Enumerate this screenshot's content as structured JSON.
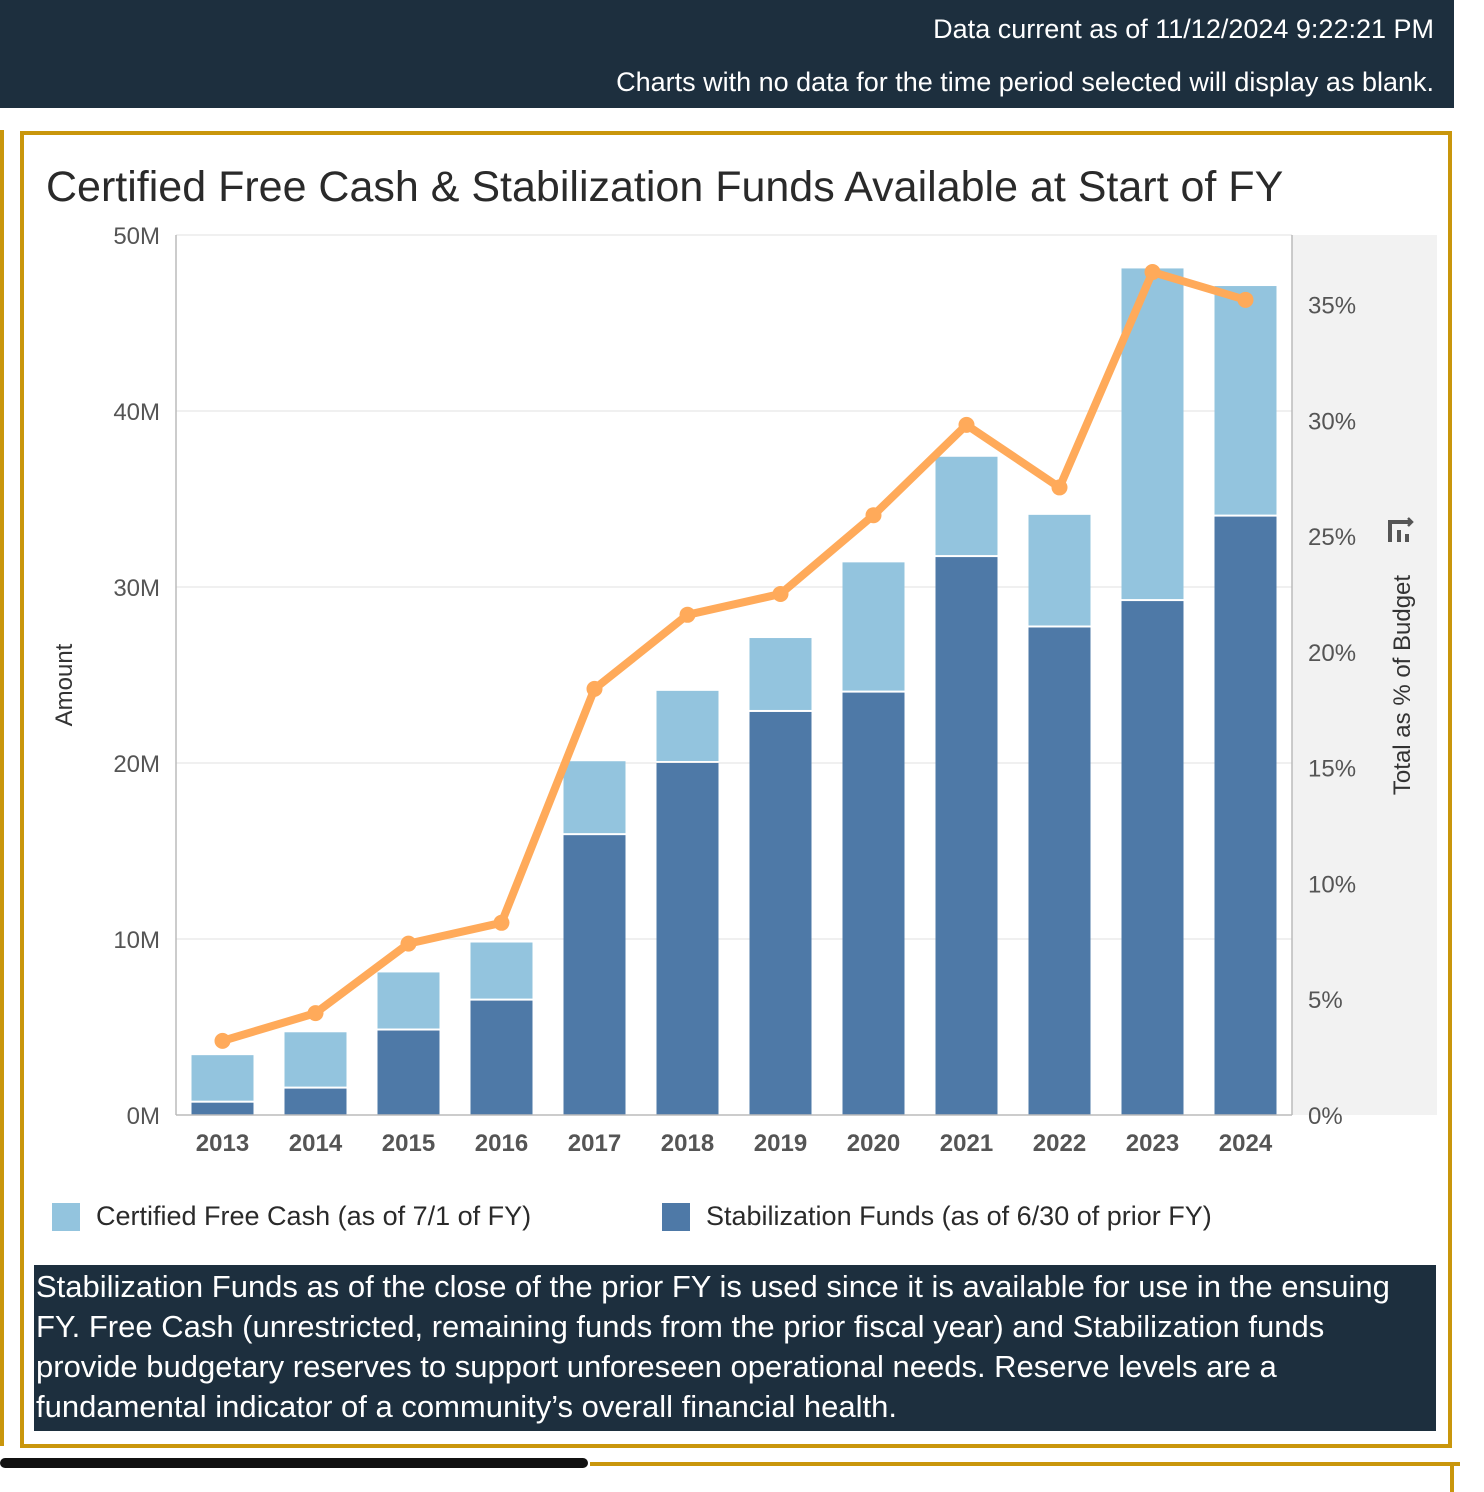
{
  "banner": {
    "data_current": "Data current as of 11/12/2024 9:22:21 PM",
    "note": "Charts with no data for the time period selected will display as blank."
  },
  "colors": {
    "banner_bg": "#1d2f3e",
    "panel_border": "#c9960c",
    "free_cash": "#93c4de",
    "stabilization": "#4e79a7",
    "pct_line": "#ffaa5a"
  },
  "icons": {
    "toolbar": "chart-options-icon"
  },
  "chart_data": {
    "type": "bar",
    "stacked": true,
    "title": "Certified Free Cash & Stabilization Funds Available at Start of FY",
    "ylabel": "Amount",
    "y2label": "Total as % of Budget",
    "ylim": [
      0,
      50000000
    ],
    "y2lim": [
      0,
      38
    ],
    "yticks": [
      "0M",
      "10M",
      "20M",
      "30M",
      "40M",
      "50M"
    ],
    "ytick_values": [
      0,
      10000000,
      20000000,
      30000000,
      40000000,
      50000000
    ],
    "y2ticks": [
      "0%",
      "5%",
      "10%",
      "15%",
      "20%",
      "25%",
      "30%",
      "35%"
    ],
    "y2tick_values": [
      0,
      5,
      10,
      15,
      20,
      25,
      30,
      35
    ],
    "categories": [
      "2013",
      "2014",
      "2015",
      "2016",
      "2017",
      "2018",
      "2019",
      "2020",
      "2021",
      "2022",
      "2023",
      "2024"
    ],
    "series": [
      {
        "name": "Stabilization Funds (as of 6/30 of prior FY)",
        "kind": "bar",
        "values": [
          700000,
          1500000,
          4800000,
          6500000,
          15900000,
          20000000,
          22900000,
          24000000,
          31700000,
          27700000,
          29200000,
          34000000
        ]
      },
      {
        "name": "Certified Free Cash (as of 7/1 of FY)",
        "kind": "bar",
        "values": [
          2700000,
          3200000,
          3300000,
          3300000,
          4200000,
          4100000,
          4200000,
          7400000,
          5700000,
          6400000,
          18900000,
          13100000
        ]
      },
      {
        "name": "Total as % of Budget",
        "kind": "line",
        "values": [
          3.2,
          4.4,
          7.4,
          8.3,
          18.4,
          21.6,
          22.5,
          25.9,
          29.8,
          27.1,
          36.4,
          35.2
        ]
      }
    ],
    "legend": [
      "Certified Free Cash (as of 7/1 of FY)",
      "Stabilization Funds (as of 6/30 of prior FY)"
    ],
    "legend_position": "bottom",
    "grid": true
  },
  "note_text": "Stabilization Funds as of the close of the prior FY is used since it is available for use in the ensuing FY. Free Cash (unrestricted, remaining funds from the prior fiscal year) and Stabilization funds provide budgetary reserves to support unforeseen operational needs. Reserve levels are a fundamental indicator of a community’s overall financial health."
}
